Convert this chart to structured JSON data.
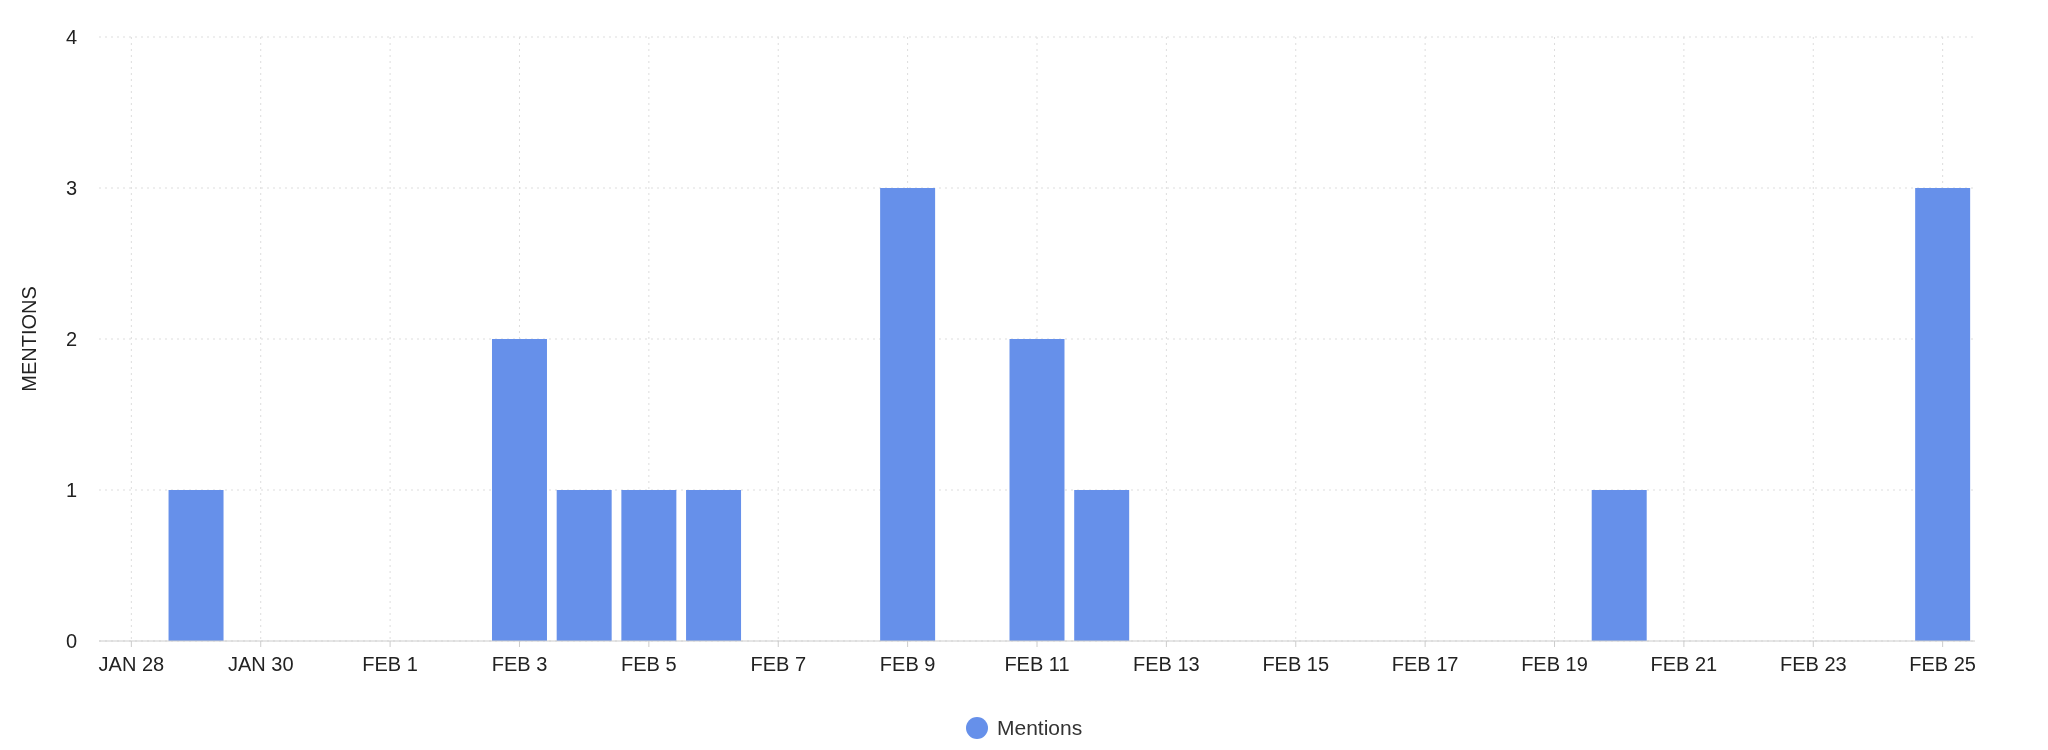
{
  "chart_data": {
    "type": "bar",
    "ylabel": "MENTIONS",
    "categories": [
      "JAN 28",
      null,
      "JAN 30",
      null,
      "FEB 1",
      null,
      "FEB 3",
      null,
      "FEB 5",
      null,
      "FEB 7",
      null,
      "FEB 9",
      null,
      "FEB 11",
      null,
      "FEB 13",
      null,
      "FEB 15",
      null,
      "FEB 17",
      null,
      "FEB 19",
      null,
      "FEB 21",
      null,
      "FEB 23",
      null,
      "FEB 25"
    ],
    "series": [
      {
        "name": "Mentions",
        "color": "#6690ea",
        "values": [
          0,
          1,
          0,
          0,
          0,
          0,
          2,
          1,
          1,
          1,
          0,
          0,
          3,
          0,
          2,
          1,
          0,
          0,
          0,
          0,
          0,
          0,
          0,
          1,
          0,
          0,
          0,
          0,
          3
        ]
      }
    ],
    "ylim": [
      0,
      4
    ],
    "yticks": [
      0,
      1,
      2,
      3,
      4
    ],
    "grid": true,
    "legend": "bottom"
  }
}
